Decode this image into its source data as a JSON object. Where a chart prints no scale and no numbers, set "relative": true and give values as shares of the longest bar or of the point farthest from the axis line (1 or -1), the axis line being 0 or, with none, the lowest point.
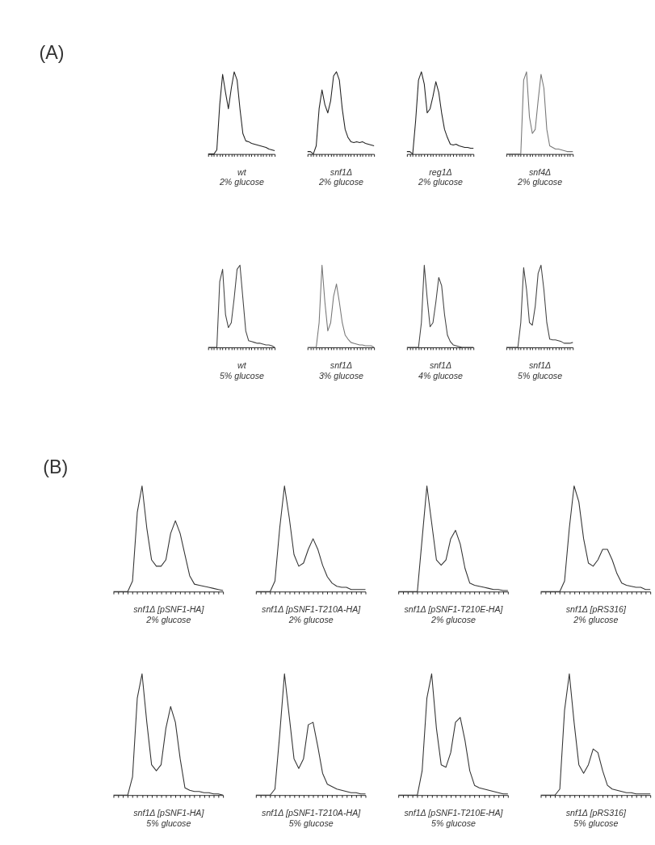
{
  "chart_data": [
    {
      "type": "line",
      "relative": true,
      "color": "#222222",
      "xlabel": "wt\n2% glucose",
      "annotations": [
        "(A)"
      ],
      "categories": [
        null,
        null,
        null,
        null,
        null,
        null,
        null,
        null,
        null,
        null,
        null,
        null,
        null,
        null,
        null,
        null,
        null,
        null,
        null,
        null,
        null,
        null,
        null,
        null
      ],
      "values": [
        0,
        0,
        0,
        0.05,
        0.6,
        0.97,
        0.75,
        0.55,
        0.8,
        1.0,
        0.9,
        0.55,
        0.25,
        0.16,
        0.15,
        0.13,
        0.12,
        0.11,
        0.1,
        0.09,
        0.08,
        0.06,
        0.05,
        0.04
      ]
    },
    {
      "type": "line",
      "relative": true,
      "color": "#222222",
      "xlabel": "snf1Δ\n2% glucose",
      "categories": [
        null,
        null,
        null,
        null,
        null,
        null,
        null,
        null,
        null,
        null,
        null,
        null,
        null,
        null,
        null,
        null,
        null,
        null,
        null,
        null,
        null,
        null,
        null,
        null
      ],
      "values": [
        0.03,
        0.03,
        0,
        0.1,
        0.55,
        0.78,
        0.6,
        0.5,
        0.65,
        0.95,
        1.0,
        0.9,
        0.55,
        0.3,
        0.2,
        0.15,
        0.14,
        0.15,
        0.14,
        0.15,
        0.13,
        0.12,
        0.11,
        0.1
      ]
    },
    {
      "type": "line",
      "relative": true,
      "color": "#222222",
      "xlabel": "reg1Δ\n2% glucose",
      "categories": [
        null,
        null,
        null,
        null,
        null,
        null,
        null,
        null,
        null,
        null,
        null,
        null,
        null,
        null,
        null,
        null,
        null,
        null,
        null,
        null,
        null,
        null,
        null,
        null
      ],
      "values": [
        0.03,
        0.03,
        0,
        0.4,
        0.9,
        1.0,
        0.85,
        0.5,
        0.55,
        0.7,
        0.88,
        0.75,
        0.5,
        0.3,
        0.2,
        0.12,
        0.11,
        0.12,
        0.1,
        0.09,
        0.08,
        0.08,
        0.07,
        0.07
      ]
    },
    {
      "type": "line",
      "relative": true,
      "color": "#777777",
      "xlabel": "snf4Δ\n2% glucose",
      "categories": [
        null,
        null,
        null,
        null,
        null,
        null,
        null,
        null,
        null,
        null,
        null,
        null,
        null,
        null,
        null,
        null,
        null,
        null,
        null,
        null,
        null,
        null,
        null,
        null
      ],
      "values": [
        0,
        0,
        0,
        0,
        0,
        0,
        0.9,
        1.0,
        0.45,
        0.25,
        0.3,
        0.65,
        0.97,
        0.8,
        0.3,
        0.1,
        0.08,
        0.06,
        0.06,
        0.05,
        0.04,
        0.03,
        0.03,
        0.03
      ]
    },
    {
      "type": "line",
      "relative": true,
      "color": "#444444",
      "xlabel": "wt\n5% glucose",
      "categories": [
        null,
        null,
        null,
        null,
        null,
        null,
        null,
        null,
        null,
        null,
        null,
        null,
        null,
        null,
        null,
        null,
        null,
        null,
        null,
        null,
        null,
        null,
        null,
        null
      ],
      "values": [
        0,
        0,
        0,
        0,
        0.8,
        0.95,
        0.4,
        0.24,
        0.3,
        0.6,
        0.95,
        1.0,
        0.6,
        0.2,
        0.08,
        0.07,
        0.06,
        0.05,
        0.05,
        0.04,
        0.03,
        0.03,
        0.02,
        0
      ]
    },
    {
      "type": "line",
      "relative": true,
      "color": "#777777",
      "xlabel": "snf1Δ\n3% glucose",
      "categories": [
        null,
        null,
        null,
        null,
        null,
        null,
        null,
        null,
        null,
        null,
        null,
        null,
        null,
        null,
        null,
        null,
        null,
        null,
        null,
        null,
        null,
        null,
        null,
        null
      ],
      "values": [
        0,
        0,
        0,
        0,
        0.3,
        1.0,
        0.55,
        0.2,
        0.3,
        0.62,
        0.77,
        0.55,
        0.3,
        0.15,
        0.1,
        0.06,
        0.05,
        0.04,
        0.03,
        0.03,
        0.02,
        0.02,
        0.02,
        0
      ]
    },
    {
      "type": "line",
      "relative": true,
      "color": "#444444",
      "xlabel": "snf1Δ\n4% glucose",
      "categories": [
        null,
        null,
        null,
        null,
        null,
        null,
        null,
        null,
        null,
        null,
        null,
        null,
        null,
        null,
        null,
        null,
        null,
        null,
        null,
        null,
        null,
        null,
        null,
        null
      ],
      "values": [
        0,
        0,
        0,
        0,
        0,
        0.3,
        1.0,
        0.6,
        0.25,
        0.3,
        0.55,
        0.85,
        0.75,
        0.4,
        0.15,
        0.07,
        0.03,
        0.02,
        0.01,
        0,
        0,
        0,
        0,
        0
      ]
    },
    {
      "type": "line",
      "relative": true,
      "color": "#444444",
      "xlabel": "snf1Δ\n5% glucose",
      "categories": [
        null,
        null,
        null,
        null,
        null,
        null,
        null,
        null,
        null,
        null,
        null,
        null,
        null,
        null,
        null,
        null,
        null,
        null,
        null,
        null,
        null,
        null,
        null,
        null
      ],
      "values": [
        0,
        0,
        0,
        0,
        0,
        0.3,
        0.97,
        0.7,
        0.3,
        0.27,
        0.5,
        0.9,
        1.0,
        0.7,
        0.3,
        0.1,
        0.09,
        0.09,
        0.08,
        0.07,
        0.05,
        0.05,
        0.05,
        0.06
      ]
    },
    {
      "type": "line",
      "relative": true,
      "color": "#333333",
      "xlabel": "snf1Δ [pSNF1-HA]\n2% glucose",
      "annotations": [
        "(B)"
      ],
      "categories": [
        null,
        null,
        null,
        null,
        null,
        null,
        null,
        null,
        null,
        null,
        null,
        null,
        null,
        null,
        null,
        null,
        null,
        null,
        null,
        null,
        null,
        null,
        null,
        null
      ],
      "values": [
        0,
        0,
        0,
        0,
        0.1,
        0.75,
        1.0,
        0.6,
        0.3,
        0.24,
        0.24,
        0.3,
        0.55,
        0.67,
        0.55,
        0.35,
        0.15,
        0.07,
        0.06,
        0.05,
        0.04,
        0.03,
        0.02,
        0.01
      ]
    },
    {
      "type": "line",
      "relative": true,
      "color": "#333333",
      "xlabel": "snf1Δ [pSNF1-T210A-HA]\n2% glucose",
      "categories": [
        null,
        null,
        null,
        null,
        null,
        null,
        null,
        null,
        null,
        null,
        null,
        null,
        null,
        null,
        null,
        null,
        null,
        null,
        null,
        null,
        null,
        null,
        null,
        null
      ],
      "values": [
        0,
        0,
        0,
        0,
        0.1,
        0.6,
        1.0,
        0.7,
        0.35,
        0.24,
        0.27,
        0.4,
        0.5,
        0.4,
        0.25,
        0.14,
        0.08,
        0.05,
        0.04,
        0.04,
        0.02,
        0.02,
        0.02,
        0.02
      ]
    },
    {
      "type": "line",
      "relative": true,
      "color": "#333333",
      "xlabel": "snf1Δ [pSNF1-T210E-HA]\n2% glucose",
      "categories": [
        null,
        null,
        null,
        null,
        null,
        null,
        null,
        null,
        null,
        null,
        null,
        null,
        null,
        null,
        null,
        null,
        null,
        null,
        null,
        null,
        null,
        null,
        null,
        null
      ],
      "values": [
        0,
        0,
        0,
        0,
        0,
        0.5,
        1.0,
        0.65,
        0.3,
        0.25,
        0.3,
        0.5,
        0.58,
        0.45,
        0.22,
        0.08,
        0.06,
        0.05,
        0.04,
        0.03,
        0.02,
        0.02,
        0.01,
        0.01
      ]
    },
    {
      "type": "line",
      "relative": true,
      "color": "#333333",
      "xlabel": "snf1Δ [pRS316]\n2% glucose",
      "categories": [
        null,
        null,
        null,
        null,
        null,
        null,
        null,
        null,
        null,
        null,
        null,
        null,
        null,
        null,
        null,
        null,
        null,
        null,
        null,
        null,
        null,
        null,
        null,
        null
      ],
      "values": [
        0,
        0,
        0,
        0,
        0,
        0.1,
        0.6,
        1.0,
        0.85,
        0.5,
        0.27,
        0.24,
        0.3,
        0.4,
        0.4,
        0.3,
        0.17,
        0.08,
        0.06,
        0.05,
        0.04,
        0.04,
        0.02,
        0.02
      ]
    },
    {
      "type": "line",
      "relative": true,
      "color": "#333333",
      "xlabel": "snf1Δ [pSNF1-HA]\n5% glucose",
      "categories": [
        null,
        null,
        null,
        null,
        null,
        null,
        null,
        null,
        null,
        null,
        null,
        null,
        null,
        null,
        null,
        null,
        null,
        null,
        null,
        null,
        null,
        null,
        null,
        null
      ],
      "values": [
        0,
        0,
        0,
        0,
        0.15,
        0.8,
        1.0,
        0.6,
        0.25,
        0.2,
        0.25,
        0.55,
        0.73,
        0.6,
        0.3,
        0.06,
        0.04,
        0.03,
        0.03,
        0.02,
        0.02,
        0.01,
        0.01,
        0
      ]
    },
    {
      "type": "line",
      "relative": true,
      "color": "#333333",
      "xlabel": "snf1Δ [pSNF1-T210A-HA]\n5% glucose",
      "categories": [
        null,
        null,
        null,
        null,
        null,
        null,
        null,
        null,
        null,
        null,
        null,
        null,
        null,
        null,
        null,
        null,
        null,
        null,
        null,
        null,
        null,
        null,
        null,
        null
      ],
      "values": [
        0,
        0,
        0,
        0,
        0.05,
        0.5,
        1.0,
        0.65,
        0.3,
        0.22,
        0.3,
        0.58,
        0.6,
        0.4,
        0.18,
        0.09,
        0.07,
        0.05,
        0.04,
        0.03,
        0.02,
        0.02,
        0.01,
        0.01
      ]
    },
    {
      "type": "line",
      "relative": true,
      "color": "#333333",
      "xlabel": "snf1Δ [pSNF1-T210E-HA]\n5% glucose",
      "categories": [
        null,
        null,
        null,
        null,
        null,
        null,
        null,
        null,
        null,
        null,
        null,
        null,
        null,
        null,
        null,
        null,
        null,
        null,
        null,
        null,
        null,
        null,
        null,
        null
      ],
      "values": [
        0,
        0,
        0,
        0,
        0,
        0.2,
        0.8,
        1.0,
        0.55,
        0.25,
        0.23,
        0.35,
        0.6,
        0.64,
        0.45,
        0.2,
        0.08,
        0.06,
        0.05,
        0.04,
        0.03,
        0.02,
        0.01,
        0.01
      ]
    },
    {
      "type": "line",
      "relative": true,
      "color": "#333333",
      "xlabel": "snf1Δ [pRS316]\n5% glucose",
      "categories": [
        null,
        null,
        null,
        null,
        null,
        null,
        null,
        null,
        null,
        null,
        null,
        null,
        null,
        null,
        null,
        null,
        null,
        null,
        null,
        null,
        null,
        null,
        null,
        null
      ],
      "values": [
        0,
        0,
        0,
        0,
        0.05,
        0.7,
        1.0,
        0.6,
        0.25,
        0.18,
        0.25,
        0.38,
        0.35,
        0.2,
        0.08,
        0.05,
        0.04,
        0.03,
        0.02,
        0.02,
        0.01,
        0.01,
        0.01,
        0.01
      ]
    }
  ]
}
